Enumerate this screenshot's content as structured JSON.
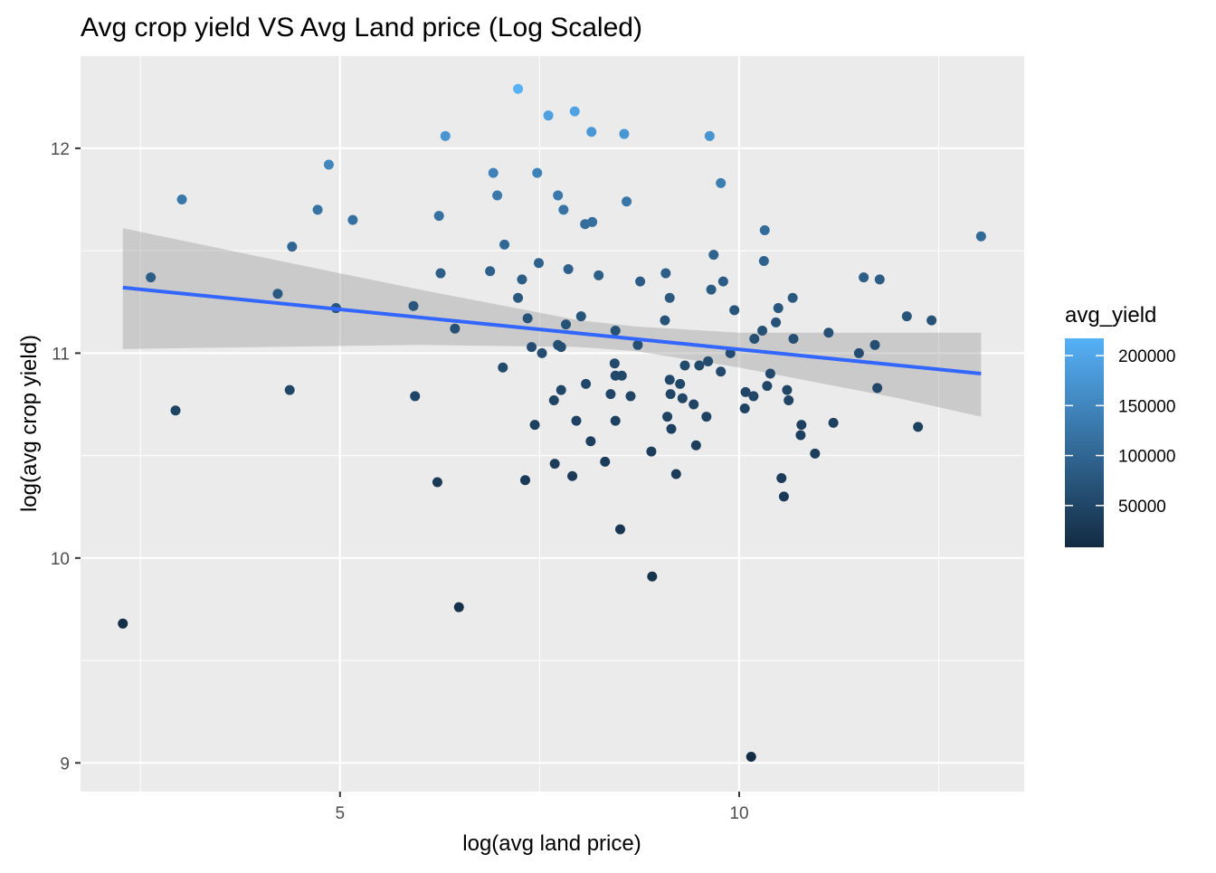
{
  "chart_data": {
    "type": "scatter",
    "title": "Avg crop yield VS Avg Land price (Log Scaled)",
    "x_label": "log(avg land price)",
    "y_label": "log(avg crop yield)",
    "xlim": [
      1.75,
      13.57
    ],
    "ylim": [
      8.86,
      12.45
    ],
    "xticks": [
      5,
      10
    ],
    "yticks": [
      9,
      10,
      11,
      12
    ],
    "xminor": [
      2.5,
      7.5,
      12.5
    ],
    "yminor": [
      9.5,
      10.5,
      11.5
    ],
    "grid": true,
    "x": [
      7.23,
      7.61,
      7.94,
      8.15,
      8.56,
      9.63,
      6.32,
      4.86,
      6.92,
      7.47,
      9.77,
      3.02,
      6.97,
      7.73,
      8.59,
      4.72,
      7.8,
      6.24,
      5.16,
      8.07,
      8.16,
      10.32,
      13.03,
      4.4,
      7.06,
      9.68,
      2.63,
      7.49,
      6.26,
      6.88,
      7.86,
      8.24,
      7.28,
      9.08,
      10.31,
      11.56,
      11.76,
      8.76,
      9.65,
      9.8,
      4.22,
      7.23,
      9.13,
      10.67,
      4.95,
      5.92,
      10.49,
      7.35,
      8.02,
      9.94,
      12.1,
      12.41,
      7.83,
      9.07,
      10.46,
      6.44,
      8.45,
      10.29,
      11.12,
      10.19,
      10.68,
      8.73,
      7.4,
      7.73,
      7.77,
      7.53,
      9.89,
      11.5,
      11.7,
      7.04,
      8.44,
      9.32,
      9.5,
      9.61,
      9.77,
      10.39,
      9.13,
      8.45,
      8.08,
      8.39,
      8.53,
      4.37,
      5.94,
      7.68,
      7.77,
      8.64,
      9.14,
      9.26,
      9.29,
      10.08,
      10.18,
      10.35,
      10.6,
      10.62,
      11.73,
      9.43,
      10.07,
      9.1,
      7.44,
      7.96,
      8.45,
      9.59,
      2.94,
      9.15,
      10.78,
      10.77,
      11.18,
      12.24,
      8.14,
      9.46,
      8.9,
      10.95,
      8.32,
      7.69,
      7.91,
      9.21,
      6.22,
      7.32,
      10.53,
      10.56,
      8.51,
      8.91,
      2.28,
      6.49,
      10.15
    ],
    "y": [
      12.29,
      12.16,
      12.18,
      12.08,
      12.07,
      12.06,
      12.06,
      11.92,
      11.88,
      11.88,
      11.83,
      11.75,
      11.77,
      11.77,
      11.74,
      11.7,
      11.7,
      11.67,
      11.65,
      11.63,
      11.64,
      11.6,
      11.57,
      11.52,
      11.53,
      11.48,
      11.37,
      11.44,
      11.39,
      11.4,
      11.41,
      11.38,
      11.36,
      11.39,
      11.45,
      11.37,
      11.36,
      11.35,
      11.31,
      11.35,
      11.29,
      11.27,
      11.27,
      11.27,
      11.22,
      11.23,
      11.22,
      11.17,
      11.18,
      11.21,
      11.18,
      11.16,
      11.14,
      11.16,
      11.15,
      11.12,
      11.11,
      11.11,
      11.1,
      11.07,
      11.07,
      11.04,
      11.03,
      11.04,
      11.03,
      11.0,
      11.0,
      11.0,
      11.04,
      10.93,
      10.95,
      10.94,
      10.94,
      10.96,
      10.91,
      10.9,
      10.87,
      10.89,
      10.85,
      10.8,
      10.89,
      10.82,
      10.79,
      10.77,
      10.82,
      10.79,
      10.8,
      10.85,
      10.78,
      10.81,
      10.79,
      10.84,
      10.82,
      10.77,
      10.83,
      10.75,
      10.73,
      10.69,
      10.65,
      10.67,
      10.67,
      10.69,
      10.72,
      10.63,
      10.65,
      10.6,
      10.66,
      10.64,
      10.57,
      10.55,
      10.52,
      10.51,
      10.47,
      10.46,
      10.4,
      10.41,
      10.37,
      10.38,
      10.39,
      10.3,
      10.14,
      9.91,
      9.68,
      9.76,
      9.03
    ],
    "fit": {
      "x": [
        2.28,
        13.03
      ],
      "y": [
        11.32,
        10.9
      ],
      "color": "#3366FF"
    },
    "ribbon": {
      "x": [
        2.28,
        4,
        6,
        8,
        8.7,
        10,
        12,
        13.03
      ],
      "upper": [
        11.61,
        11.47,
        11.31,
        11.16,
        11.13,
        11.1,
        11.1,
        11.1
      ],
      "lower": [
        11.02,
        11.03,
        11.04,
        11.03,
        11.01,
        10.93,
        10.78,
        10.69
      ]
    },
    "colorbar": {
      "title": "avg_yield",
      "lim": [
        8180,
        217270
      ],
      "ticks": [
        50000,
        100000,
        150000,
        200000
      ],
      "low": "#132B43",
      "high": "#56B1F7"
    }
  }
}
